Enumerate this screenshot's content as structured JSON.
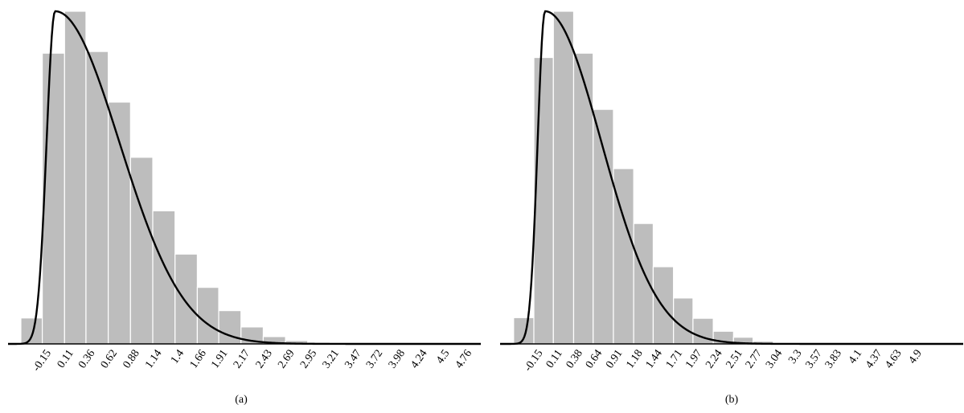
{
  "chart_data": [
    {
      "type": "bar",
      "panel": "a",
      "caption": "(a)",
      "tick_labels": [
        "-0.15",
        "0.11",
        "0.36",
        "0.62",
        "0.88",
        "1.14",
        "1.4",
        "1.66",
        "1.91",
        "2.17",
        "2.43",
        "2.69",
        "2.95",
        "3.21",
        "3.47",
        "3.72",
        "3.98",
        "4.24",
        "4.5",
        "4.76"
      ],
      "bars": [
        {
          "x_left": -0.4,
          "x_right": -0.15,
          "height": 0.078
        },
        {
          "x_left": -0.15,
          "x_right": 0.11,
          "height": 0.874
        },
        {
          "x_left": 0.11,
          "x_right": 0.36,
          "height": 1.0
        },
        {
          "x_left": 0.36,
          "x_right": 0.62,
          "height": 0.879
        },
        {
          "x_left": 0.62,
          "x_right": 0.88,
          "height": 0.727
        },
        {
          "x_left": 0.88,
          "x_right": 1.14,
          "height": 0.561
        },
        {
          "x_left": 1.14,
          "x_right": 1.4,
          "height": 0.4
        },
        {
          "x_left": 1.4,
          "x_right": 1.66,
          "height": 0.27
        },
        {
          "x_left": 1.66,
          "x_right": 1.91,
          "height": 0.17
        },
        {
          "x_left": 1.91,
          "x_right": 2.17,
          "height": 0.1
        },
        {
          "x_left": 2.17,
          "x_right": 2.43,
          "height": 0.051
        },
        {
          "x_left": 2.43,
          "x_right": 2.69,
          "height": 0.022
        },
        {
          "x_left": 2.69,
          "x_right": 2.95,
          "height": 0.01
        },
        {
          "x_left": 2.95,
          "x_right": 3.21,
          "height": 0.005
        }
      ],
      "curve": {
        "mode": 0.0,
        "sigma_left": 0.1,
        "sigma_right": 0.75
      },
      "xlim": [
        -0.55,
        4.97
      ],
      "ylim": [
        0,
        1.0
      ],
      "xlabel": "",
      "ylabel": "",
      "bar_color": "#bdbdbd",
      "curve_color": "#000000"
    },
    {
      "type": "bar",
      "panel": "b",
      "caption": "(b)",
      "tick_labels": [
        "-0.15",
        "0.11",
        "0.38",
        "0.64",
        "0.91",
        "1.18",
        "1.44",
        "1.71",
        "1.97",
        "2.24",
        "2.51",
        "2.77",
        "3.04",
        "3.3",
        "3.57",
        "3.83",
        "4.1",
        "4.37",
        "4.63",
        "4.9"
      ],
      "bars": [
        {
          "x_left": -0.42,
          "x_right": -0.15,
          "height": 0.079
        },
        {
          "x_left": -0.15,
          "x_right": 0.11,
          "height": 0.861
        },
        {
          "x_left": 0.11,
          "x_right": 0.38,
          "height": 1.0
        },
        {
          "x_left": 0.38,
          "x_right": 0.64,
          "height": 0.874
        },
        {
          "x_left": 0.64,
          "x_right": 0.91,
          "height": 0.705
        },
        {
          "x_left": 0.91,
          "x_right": 1.18,
          "height": 0.527
        },
        {
          "x_left": 1.18,
          "x_right": 1.44,
          "height": 0.362
        },
        {
          "x_left": 1.44,
          "x_right": 1.71,
          "height": 0.232
        },
        {
          "x_left": 1.71,
          "x_right": 1.97,
          "height": 0.138
        },
        {
          "x_left": 1.97,
          "x_right": 2.24,
          "height": 0.077
        },
        {
          "x_left": 2.24,
          "x_right": 2.51,
          "height": 0.038
        },
        {
          "x_left": 2.51,
          "x_right": 2.77,
          "height": 0.02
        },
        {
          "x_left": 2.77,
          "x_right": 3.04,
          "height": 0.008
        },
        {
          "x_left": 3.04,
          "x_right": 3.3,
          "height": 0.003
        }
      ],
      "curve": {
        "mode": 0.0,
        "sigma_left": 0.1,
        "sigma_right": 0.75
      },
      "xlim": [
        -0.6,
        5.57
      ],
      "ylim": [
        0,
        1.0
      ],
      "xlabel": "",
      "ylabel": "",
      "bar_color": "#bdbdbd",
      "curve_color": "#000000"
    }
  ]
}
